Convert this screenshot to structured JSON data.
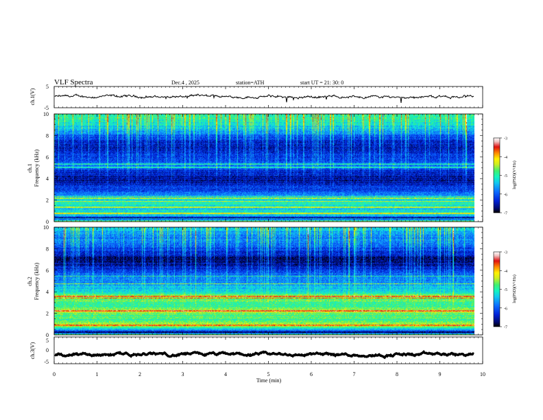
{
  "header": {
    "title": "VLF  Spectra",
    "date": "Dec.4  , 2025",
    "station": "station=ATH",
    "start": "start  UT  =   21: 30: 0"
  },
  "colors": {
    "background": "#ffffff",
    "trace": "#000000",
    "colormap": [
      "#000000",
      "#000a6e",
      "#0022d8",
      "#0d6cff",
      "#12c8f0",
      "#14f5c0",
      "#40f070",
      "#d0ee20",
      "#fff200",
      "#ff8800",
      "#e01010",
      "#f0c0c0",
      "#ffffff"
    ]
  },
  "chart_data": [
    {
      "type": "line",
      "name": "ch1-waveform",
      "ylabel": "ch.1(V)",
      "ylim": [
        -5,
        5
      ],
      "yticks": [
        5,
        -5
      ],
      "xlim": [
        0,
        10
      ],
      "data_end_min": 9.8,
      "approx_level": 0.2,
      "approx_ripple": 0.6
    },
    {
      "type": "heatmap",
      "name": "ch1-spectrogram",
      "ylabel": "ch.1\nFrequency (kHz)",
      "ylim": [
        0,
        10
      ],
      "yticks": [
        0,
        2,
        4,
        6,
        8,
        10
      ],
      "xlim": [
        0,
        10
      ],
      "data_end_min": 9.8,
      "colorbar": {
        "label": "log(PSD)(V²/Hz)",
        "range": [
          -7,
          -3
        ],
        "ticks": [
          -3,
          -4,
          -5,
          -6,
          -7
        ]
      },
      "approx_profile": [
        {
          "f": 0.0,
          "v": -4.5
        },
        {
          "f": 0.3,
          "v": -6.9
        },
        {
          "f": 0.5,
          "v": -5.4
        },
        {
          "f": 0.8,
          "v": -5.2
        },
        {
          "f": 1.2,
          "v": -5.3
        },
        {
          "f": 1.6,
          "v": -5.1
        },
        {
          "f": 2.0,
          "v": -5.3
        },
        {
          "f": 2.3,
          "v": -5.6
        },
        {
          "f": 3.0,
          "v": -6.2
        },
        {
          "f": 3.8,
          "v": -6.6
        },
        {
          "f": 4.5,
          "v": -6.4
        },
        {
          "f": 5.2,
          "v": -5.9
        },
        {
          "f": 6.0,
          "v": -6.2
        },
        {
          "f": 6.8,
          "v": -6.5
        },
        {
          "f": 7.5,
          "v": -6.3
        },
        {
          "f": 8.2,
          "v": -5.8
        },
        {
          "f": 9.0,
          "v": -5.2
        },
        {
          "f": 10.0,
          "v": -4.9
        }
      ],
      "line_features_khz": [
        0.25,
        0.75,
        1.3,
        1.85,
        2.15,
        2.3,
        5.05,
        5.35
      ]
    },
    {
      "type": "heatmap",
      "name": "ch2-spectrogram",
      "ylabel": "ch.2\nFrequency (kHz)",
      "ylim": [
        0,
        10
      ],
      "yticks": [
        0,
        2,
        4,
        6,
        8,
        10
      ],
      "xlim": [
        0,
        10
      ],
      "data_end_min": 9.8,
      "colorbar": {
        "label": "log(PSD)(V²/Hz)",
        "range": [
          -7,
          -3
        ],
        "ticks": [
          -3,
          -4,
          -5,
          -6,
          -7
        ]
      },
      "approx_profile": [
        {
          "f": 0.0,
          "v": -4.6
        },
        {
          "f": 0.2,
          "v": -6.8
        },
        {
          "f": 0.6,
          "v": -5.0
        },
        {
          "f": 0.9,
          "v": -4.4
        },
        {
          "f": 1.4,
          "v": -4.9
        },
        {
          "f": 2.0,
          "v": -4.7
        },
        {
          "f": 2.2,
          "v": -4.2
        },
        {
          "f": 2.6,
          "v": -5.0
        },
        {
          "f": 3.2,
          "v": -4.8
        },
        {
          "f": 3.5,
          "v": -4.5
        },
        {
          "f": 4.2,
          "v": -5.4
        },
        {
          "f": 5.0,
          "v": -5.7
        },
        {
          "f": 5.6,
          "v": -5.9
        },
        {
          "f": 6.3,
          "v": -6.4
        },
        {
          "f": 7.0,
          "v": -6.8
        },
        {
          "f": 7.8,
          "v": -6.3
        },
        {
          "f": 8.6,
          "v": -5.9
        },
        {
          "f": 10.0,
          "v": -5.4
        }
      ],
      "line_features_khz": [
        0.85,
        2.2,
        3.4,
        3.55,
        4.75,
        5.45
      ]
    },
    {
      "type": "line",
      "name": "ch3-waveform",
      "ylabel": "ch.3(V)",
      "ylim": [
        -5,
        5
      ],
      "yticks": [
        5,
        0,
        -5
      ],
      "xlim": [
        0,
        10
      ],
      "data_end_min": 9.8,
      "approx_level": -1.6,
      "approx_ripple": 0.1
    }
  ],
  "x_axis": {
    "label": "Time  (min)",
    "ticks": [
      "0",
      "1",
      "2",
      "3",
      "4",
      "5",
      "6",
      "7",
      "8",
      "9",
      "10"
    ]
  }
}
